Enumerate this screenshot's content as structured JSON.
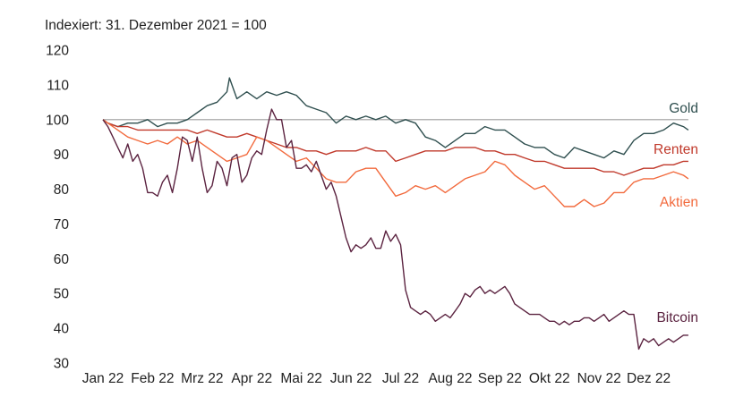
{
  "chart_data": {
    "type": "line",
    "subtitle": "Indexiert: 31. Dezember 2021 = 100",
    "x_tick_labels": [
      "Jan 22",
      "Feb 22",
      "Mrz 22",
      "Apr 22",
      "Mai 22",
      "Jun 22",
      "Jul 22",
      "Aug 22",
      "Sep 22",
      "Okt 22",
      "Nov 22",
      "Dez 22"
    ],
    "x_range": [
      0,
      12
    ],
    "ylim": [
      30,
      120
    ],
    "y_ticks": [
      30,
      40,
      50,
      60,
      70,
      80,
      90,
      100,
      110,
      120
    ],
    "reference_line": 100,
    "grid": false,
    "legend": "inline-right",
    "series": [
      {
        "name": "Gold",
        "color": "#2f4f4f",
        "points": [
          [
            0,
            100
          ],
          [
            0.1,
            99
          ],
          [
            0.3,
            98
          ],
          [
            0.5,
            99
          ],
          [
            0.7,
            99
          ],
          [
            0.9,
            100
          ],
          [
            1.1,
            98
          ],
          [
            1.3,
            99
          ],
          [
            1.5,
            99
          ],
          [
            1.7,
            100
          ],
          [
            1.9,
            102
          ],
          [
            2.1,
            104
          ],
          [
            2.3,
            105
          ],
          [
            2.5,
            108
          ],
          [
            2.55,
            112
          ],
          [
            2.7,
            106
          ],
          [
            2.9,
            108
          ],
          [
            3.1,
            106
          ],
          [
            3.3,
            108
          ],
          [
            3.5,
            107
          ],
          [
            3.7,
            108
          ],
          [
            3.9,
            107
          ],
          [
            4.1,
            104
          ],
          [
            4.3,
            103
          ],
          [
            4.5,
            102
          ],
          [
            4.7,
            99
          ],
          [
            4.9,
            101
          ],
          [
            5.1,
            100
          ],
          [
            5.3,
            101
          ],
          [
            5.5,
            100
          ],
          [
            5.7,
            101
          ],
          [
            5.9,
            99
          ],
          [
            6.1,
            100
          ],
          [
            6.3,
            99
          ],
          [
            6.5,
            95
          ],
          [
            6.7,
            94
          ],
          [
            6.9,
            92
          ],
          [
            7.1,
            94
          ],
          [
            7.3,
            96
          ],
          [
            7.5,
            96
          ],
          [
            7.7,
            98
          ],
          [
            7.9,
            97
          ],
          [
            8.1,
            97
          ],
          [
            8.3,
            95
          ],
          [
            8.5,
            93
          ],
          [
            8.7,
            92
          ],
          [
            8.9,
            92
          ],
          [
            9.1,
            90
          ],
          [
            9.3,
            89
          ],
          [
            9.5,
            92
          ],
          [
            9.7,
            91
          ],
          [
            9.9,
            90
          ],
          [
            10.1,
            89
          ],
          [
            10.3,
            91
          ],
          [
            10.5,
            90
          ],
          [
            10.7,
            94
          ],
          [
            10.9,
            96
          ],
          [
            11.1,
            96
          ],
          [
            11.3,
            97
          ],
          [
            11.5,
            99
          ],
          [
            11.7,
            98
          ],
          [
            11.8,
            97
          ]
        ]
      },
      {
        "name": "Renten",
        "color": "#c0392b",
        "points": [
          [
            0,
            100
          ],
          [
            0.1,
            99
          ],
          [
            0.3,
            98
          ],
          [
            0.5,
            98
          ],
          [
            0.7,
            97
          ],
          [
            0.9,
            97
          ],
          [
            1.1,
            97
          ],
          [
            1.3,
            97
          ],
          [
            1.5,
            97
          ],
          [
            1.7,
            97
          ],
          [
            1.9,
            96
          ],
          [
            2.1,
            97
          ],
          [
            2.3,
            96
          ],
          [
            2.5,
            95
          ],
          [
            2.7,
            95
          ],
          [
            2.9,
            96
          ],
          [
            3.1,
            95
          ],
          [
            3.3,
            94
          ],
          [
            3.5,
            93
          ],
          [
            3.7,
            92
          ],
          [
            3.9,
            92
          ],
          [
            4.1,
            91
          ],
          [
            4.3,
            91
          ],
          [
            4.5,
            90
          ],
          [
            4.7,
            91
          ],
          [
            4.9,
            91
          ],
          [
            5.1,
            91
          ],
          [
            5.3,
            92
          ],
          [
            5.5,
            91
          ],
          [
            5.7,
            91
          ],
          [
            5.9,
            88
          ],
          [
            6.1,
            89
          ],
          [
            6.3,
            90
          ],
          [
            6.5,
            91
          ],
          [
            6.7,
            91
          ],
          [
            6.9,
            91
          ],
          [
            7.1,
            92
          ],
          [
            7.3,
            92
          ],
          [
            7.5,
            92
          ],
          [
            7.7,
            91
          ],
          [
            7.9,
            91
          ],
          [
            8.1,
            90
          ],
          [
            8.3,
            90
          ],
          [
            8.5,
            89
          ],
          [
            8.7,
            88
          ],
          [
            8.9,
            88
          ],
          [
            9.1,
            87
          ],
          [
            9.3,
            86
          ],
          [
            9.5,
            86
          ],
          [
            9.7,
            86
          ],
          [
            9.9,
            86
          ],
          [
            10.1,
            85
          ],
          [
            10.3,
            85
          ],
          [
            10.5,
            84
          ],
          [
            10.7,
            85
          ],
          [
            10.9,
            86
          ],
          [
            11.1,
            86
          ],
          [
            11.3,
            87
          ],
          [
            11.5,
            87
          ],
          [
            11.7,
            88
          ],
          [
            11.8,
            88
          ]
        ]
      },
      {
        "name": "Aktien",
        "color": "#f26a3d",
        "points": [
          [
            0,
            100
          ],
          [
            0.1,
            99
          ],
          [
            0.3,
            97
          ],
          [
            0.5,
            95
          ],
          [
            0.7,
            94
          ],
          [
            0.9,
            93
          ],
          [
            1.1,
            94
          ],
          [
            1.3,
            93
          ],
          [
            1.5,
            95
          ],
          [
            1.7,
            93
          ],
          [
            1.9,
            94
          ],
          [
            2.1,
            92
          ],
          [
            2.3,
            90
          ],
          [
            2.5,
            88
          ],
          [
            2.7,
            89
          ],
          [
            2.9,
            90
          ],
          [
            3.1,
            95
          ],
          [
            3.3,
            94
          ],
          [
            3.5,
            92
          ],
          [
            3.7,
            90
          ],
          [
            3.9,
            88
          ],
          [
            4.1,
            89
          ],
          [
            4.3,
            86
          ],
          [
            4.5,
            83
          ],
          [
            4.7,
            82
          ],
          [
            4.9,
            82
          ],
          [
            5.1,
            85
          ],
          [
            5.3,
            86
          ],
          [
            5.5,
            86
          ],
          [
            5.7,
            82
          ],
          [
            5.9,
            78
          ],
          [
            6.1,
            79
          ],
          [
            6.3,
            81
          ],
          [
            6.5,
            80
          ],
          [
            6.7,
            81
          ],
          [
            6.9,
            79
          ],
          [
            7.1,
            81
          ],
          [
            7.3,
            83
          ],
          [
            7.5,
            84
          ],
          [
            7.7,
            85
          ],
          [
            7.9,
            88
          ],
          [
            8.1,
            87
          ],
          [
            8.3,
            84
          ],
          [
            8.5,
            82
          ],
          [
            8.7,
            80
          ],
          [
            8.9,
            81
          ],
          [
            9.1,
            78
          ],
          [
            9.3,
            75
          ],
          [
            9.5,
            75
          ],
          [
            9.7,
            77
          ],
          [
            9.9,
            75
          ],
          [
            10.1,
            76
          ],
          [
            10.3,
            79
          ],
          [
            10.5,
            79
          ],
          [
            10.7,
            82
          ],
          [
            10.9,
            83
          ],
          [
            11.1,
            83
          ],
          [
            11.3,
            84
          ],
          [
            11.5,
            85
          ],
          [
            11.7,
            84
          ],
          [
            11.8,
            83
          ]
        ]
      },
      {
        "name": "Bitcoin",
        "color": "#5b2340",
        "points": [
          [
            0,
            100
          ],
          [
            0.1,
            98
          ],
          [
            0.2,
            95
          ],
          [
            0.3,
            92
          ],
          [
            0.4,
            89
          ],
          [
            0.5,
            93
          ],
          [
            0.6,
            88
          ],
          [
            0.7,
            90
          ],
          [
            0.8,
            86
          ],
          [
            0.9,
            79
          ],
          [
            1.0,
            79
          ],
          [
            1.1,
            78
          ],
          [
            1.2,
            82
          ],
          [
            1.3,
            84
          ],
          [
            1.4,
            79
          ],
          [
            1.5,
            86
          ],
          [
            1.6,
            95
          ],
          [
            1.7,
            94
          ],
          [
            1.8,
            88
          ],
          [
            1.9,
            95
          ],
          [
            2.0,
            86
          ],
          [
            2.1,
            79
          ],
          [
            2.2,
            81
          ],
          [
            2.3,
            88
          ],
          [
            2.4,
            86
          ],
          [
            2.5,
            81
          ],
          [
            2.6,
            89
          ],
          [
            2.7,
            90
          ],
          [
            2.8,
            82
          ],
          [
            2.9,
            84
          ],
          [
            3.0,
            89
          ],
          [
            3.1,
            91
          ],
          [
            3.2,
            90
          ],
          [
            3.3,
            97
          ],
          [
            3.4,
            103
          ],
          [
            3.5,
            100
          ],
          [
            3.6,
            100
          ],
          [
            3.7,
            92
          ],
          [
            3.8,
            94
          ],
          [
            3.9,
            86
          ],
          [
            4.0,
            86
          ],
          [
            4.1,
            87
          ],
          [
            4.2,
            85
          ],
          [
            4.3,
            88
          ],
          [
            4.4,
            84
          ],
          [
            4.5,
            80
          ],
          [
            4.6,
            82
          ],
          [
            4.7,
            78
          ],
          [
            4.8,
            72
          ],
          [
            4.9,
            66
          ],
          [
            5.0,
            62
          ],
          [
            5.1,
            64
          ],
          [
            5.2,
            63
          ],
          [
            5.3,
            64
          ],
          [
            5.4,
            66
          ],
          [
            5.5,
            63
          ],
          [
            5.6,
            63
          ],
          [
            5.7,
            68
          ],
          [
            5.8,
            65
          ],
          [
            5.9,
            67
          ],
          [
            6.0,
            64
          ],
          [
            6.1,
            51
          ],
          [
            6.2,
            46
          ],
          [
            6.3,
            45
          ],
          [
            6.4,
            44
          ],
          [
            6.5,
            45
          ],
          [
            6.6,
            44
          ],
          [
            6.7,
            42
          ],
          [
            6.8,
            43
          ],
          [
            6.9,
            44
          ],
          [
            7.0,
            43
          ],
          [
            7.1,
            45
          ],
          [
            7.2,
            47
          ],
          [
            7.3,
            50
          ],
          [
            7.4,
            49
          ],
          [
            7.5,
            51
          ],
          [
            7.6,
            52
          ],
          [
            7.7,
            50
          ],
          [
            7.8,
            51
          ],
          [
            7.9,
            50
          ],
          [
            8.0,
            51
          ],
          [
            8.1,
            52
          ],
          [
            8.2,
            50
          ],
          [
            8.3,
            47
          ],
          [
            8.4,
            46
          ],
          [
            8.5,
            45
          ],
          [
            8.6,
            44
          ],
          [
            8.7,
            44
          ],
          [
            8.8,
            44
          ],
          [
            8.9,
            43
          ],
          [
            9.0,
            42
          ],
          [
            9.1,
            42
          ],
          [
            9.2,
            41
          ],
          [
            9.3,
            42
          ],
          [
            9.4,
            41
          ],
          [
            9.5,
            42
          ],
          [
            9.6,
            42
          ],
          [
            9.7,
            43
          ],
          [
            9.8,
            43
          ],
          [
            9.9,
            42
          ],
          [
            10.0,
            43
          ],
          [
            10.1,
            44
          ],
          [
            10.2,
            42
          ],
          [
            10.3,
            43
          ],
          [
            10.4,
            44
          ],
          [
            10.5,
            45
          ],
          [
            10.6,
            44
          ],
          [
            10.7,
            44
          ],
          [
            10.8,
            34
          ],
          [
            10.9,
            37
          ],
          [
            11.0,
            36
          ],
          [
            11.1,
            37
          ],
          [
            11.2,
            35
          ],
          [
            11.3,
            36
          ],
          [
            11.4,
            37
          ],
          [
            11.5,
            36
          ],
          [
            11.6,
            37
          ],
          [
            11.7,
            38
          ],
          [
            11.8,
            38
          ]
        ]
      }
    ]
  }
}
